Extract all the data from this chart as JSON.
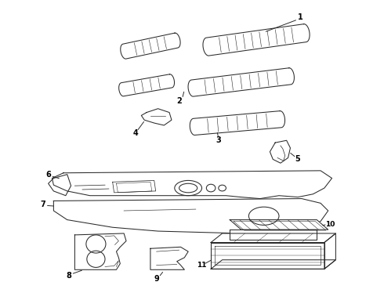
{
  "background_color": "#ffffff",
  "line_color": "#2a2a2a",
  "label_color": "#000000",
  "lw": 0.75,
  "figsize": [
    4.9,
    3.6
  ],
  "dpi": 100
}
